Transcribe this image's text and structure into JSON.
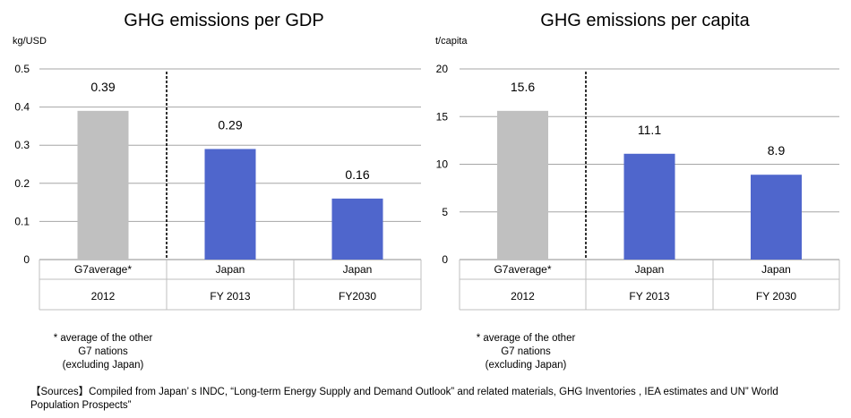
{
  "chart_data": [
    {
      "type": "bar",
      "title": "GHG emissions per GDP",
      "ylabel": "kg/USD",
      "ylim": [
        0,
        0.5
      ],
      "yticks": [
        "0",
        "0.1",
        "0.2",
        "0.3",
        "0.4",
        "0.5"
      ],
      "grid": true,
      "categories": [
        {
          "name": "G7average*",
          "year": "2012"
        },
        {
          "name": "Japan",
          "year": "FY 2013"
        },
        {
          "name": "Japan",
          "year": "FY2030"
        }
      ],
      "values": [
        0.39,
        0.29,
        0.16
      ],
      "value_labels": [
        "0.39",
        "0.29",
        "0.16"
      ],
      "colors": [
        "#c0c0c0",
        "#4f66cc",
        "#4f66cc"
      ]
    },
    {
      "type": "bar",
      "title": "GHG emissions per capita",
      "ylabel": "t/capita",
      "ylim": [
        0,
        20
      ],
      "yticks": [
        "0",
        "5",
        "10",
        "15",
        "20"
      ],
      "grid": true,
      "categories": [
        {
          "name": "G7average*",
          "year": "2012"
        },
        {
          "name": "Japan",
          "year": "FY 2013"
        },
        {
          "name": "Japan",
          "year": "FY 2030"
        }
      ],
      "values": [
        15.6,
        11.1,
        8.9
      ],
      "value_labels": [
        "15.6",
        "11.1",
        "8.9"
      ],
      "colors": [
        "#c0c0c0",
        "#4f66cc",
        "#4f66cc"
      ]
    }
  ],
  "notes": {
    "left": [
      "* average of the other",
      "G7 nations",
      "(excluding Japan)"
    ],
    "right": [
      "* average of the other",
      "G7 nations",
      "(excluding Japan)"
    ]
  },
  "source": "【Sources】Compiled from Japan’ s INDC, “Long-term Energy Supply and Demand Outlook” and related materials, GHG Inventories , IEA estimates and UN” World Population Prospects”"
}
